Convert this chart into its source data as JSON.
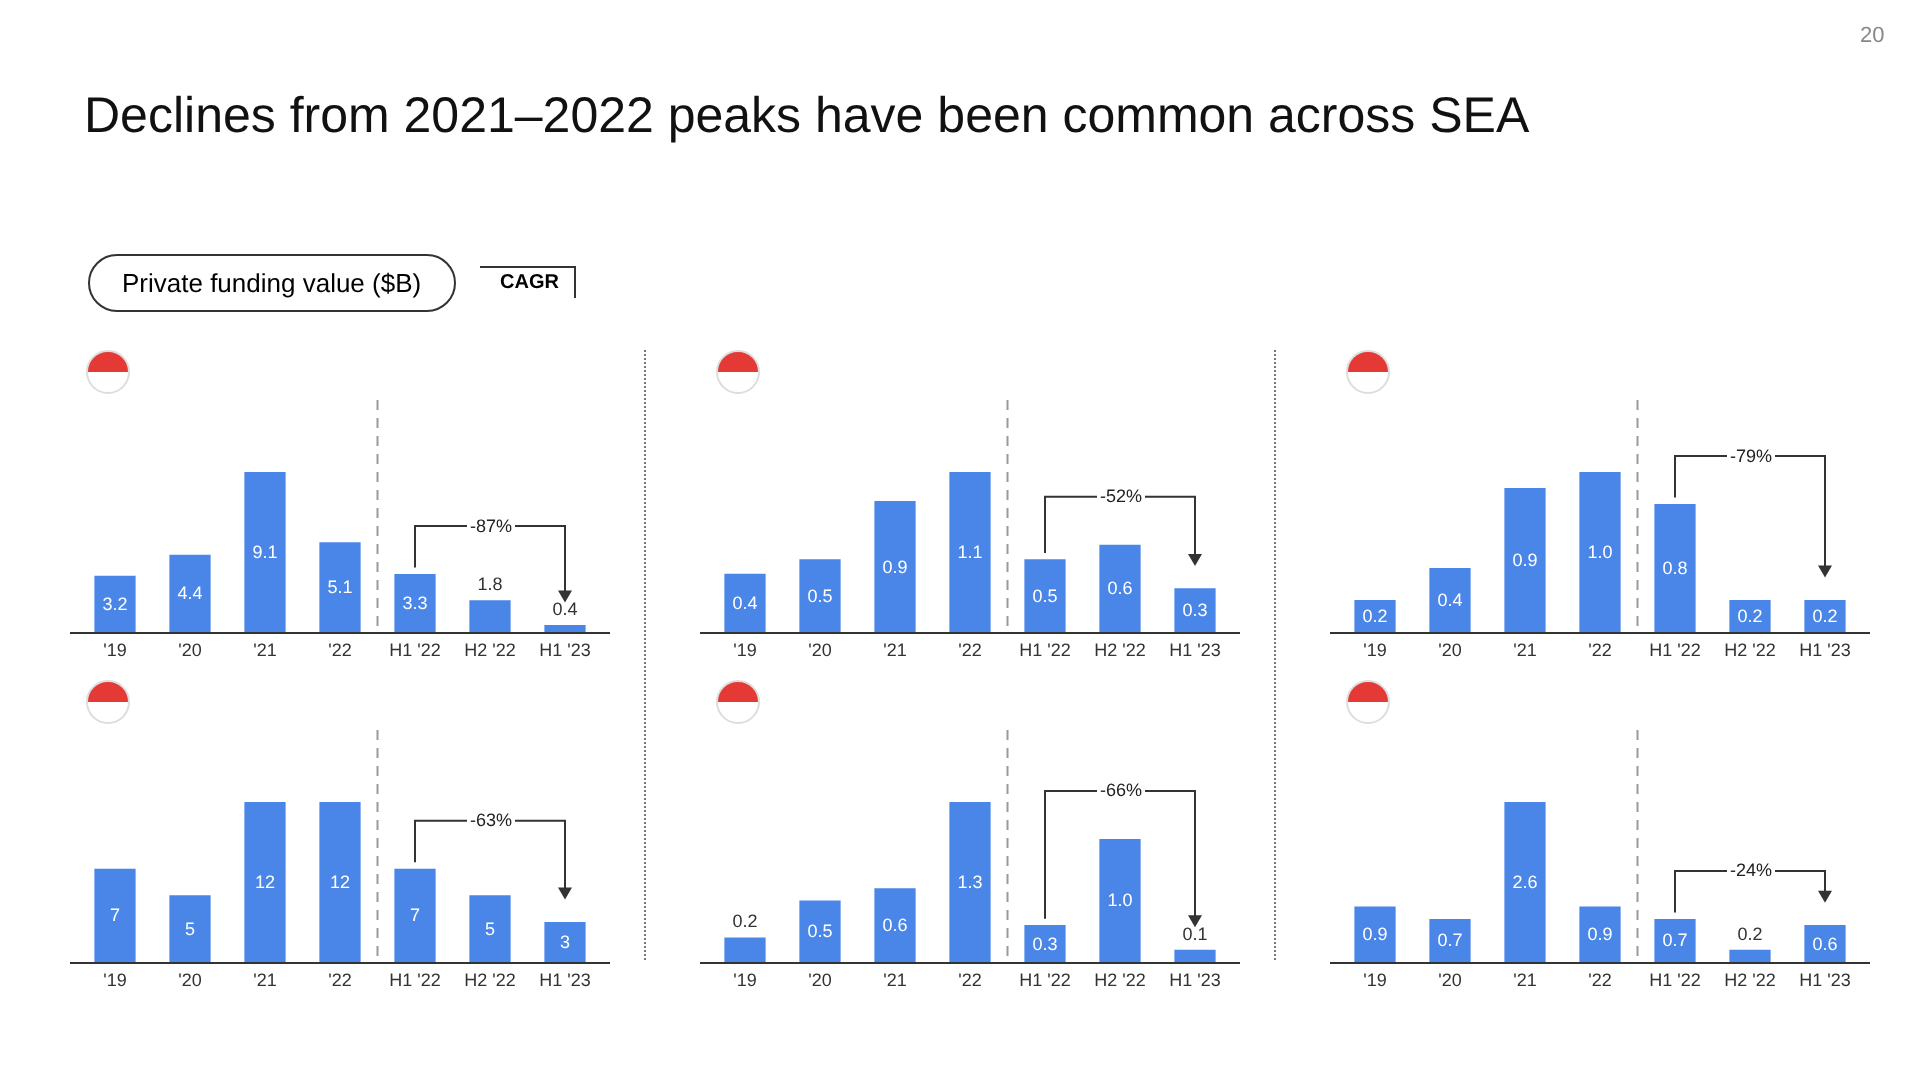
{
  "chart_data": [
    {
      "type": "bar",
      "title": "Declines from 2021–2022 peaks have been common across SEA",
      "annotations": [
        "Private funding value ($B)",
        "CAGR",
        "20",
        "-87%"
      ],
      "categories": [
        "'19",
        "'20",
        "'21",
        "'22",
        "H1 '22",
        "H2 '22",
        "H1 '23"
      ],
      "values": [
        3.2,
        4.4,
        9.1,
        5.1,
        3.3,
        1.8,
        0.4
      ],
      "color": "#4a86e8",
      "data_labels": true
    },
    {
      "type": "bar",
      "annotations": [
        "-52%"
      ],
      "categories": [
        "'19",
        "'20",
        "'21",
        "'22",
        "H1 '22",
        "H2 '22",
        "H1 '23"
      ],
      "values": [
        0.4,
        0.5,
        0.9,
        1.1,
        0.5,
        0.6,
        0.3
      ],
      "color": "#4a86e8",
      "data_labels": true
    },
    {
      "type": "bar",
      "annotations": [
        "-79%"
      ],
      "categories": [
        "'19",
        "'20",
        "'21",
        "'22",
        "H1 '22",
        "H2 '22",
        "H1 '23"
      ],
      "values": [
        0.2,
        0.4,
        0.9,
        1.0,
        0.8,
        0.2,
        0.2
      ],
      "value_labels": [
        "0.2",
        "0.4",
        "0.9",
        "1.0",
        "0.8",
        "0.2",
        "0.2"
      ],
      "color": "#4a86e8"
    },
    {
      "type": "bar",
      "annotations": [
        "-63%"
      ],
      "categories": [
        "'19",
        "'20",
        "'21",
        "'22",
        "H1 '22",
        "H2 '22",
        "H1 '23"
      ],
      "values": [
        7,
        5,
        12,
        12,
        7,
        5,
        3
      ],
      "color": "#4a86e8",
      "data_labels": true
    },
    {
      "type": "bar",
      "annotations": [
        "-66%"
      ],
      "categories": [
        "'19",
        "'20",
        "'21",
        "'22",
        "H1 '22",
        "H2 '22",
        "H1 '23"
      ],
      "values": [
        0.2,
        0.5,
        0.6,
        1.3,
        0.3,
        1.0,
        0.1
      ],
      "value_labels": [
        "0.2",
        "0.5",
        "0.6",
        "1.3",
        "0.3",
        "1.0",
        "0.1"
      ],
      "color": "#4a86e8"
    },
    {
      "type": "bar",
      "annotations": [
        "-24%"
      ],
      "categories": [
        "'19",
        "'20",
        "'21",
        "'22",
        "H1 '22",
        "H2 '22",
        "H1 '23"
      ],
      "values": [
        0.9,
        0.7,
        2.6,
        0.9,
        0.7,
        0.2,
        0.6
      ],
      "color": "#4a86e8",
      "data_labels": true
    }
  ]
}
